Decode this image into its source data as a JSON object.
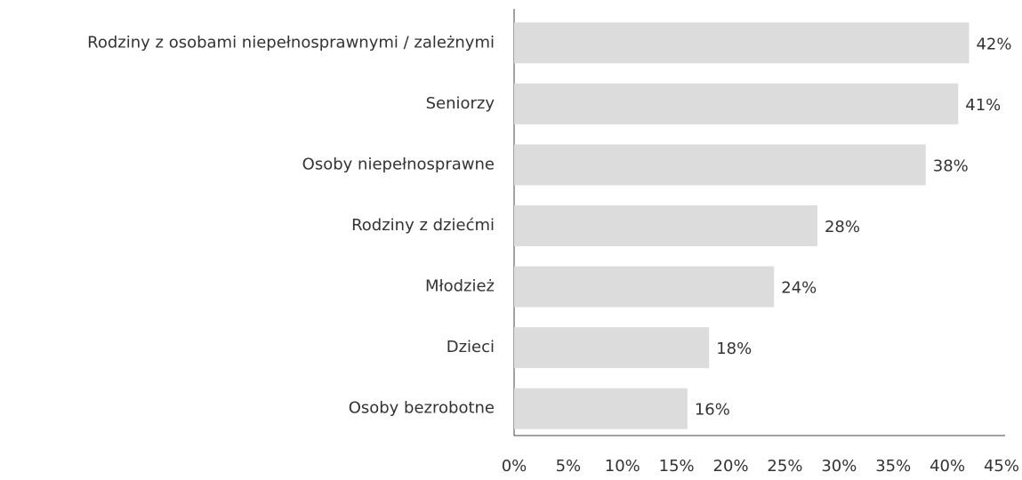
{
  "chart_data": {
    "type": "hbar",
    "categories": [
      "Rodziny z osobami niepełnosprawnymi / zależnymi",
      "Seniorzy",
      "Osoby niepełnosprawne",
      "Rodziny z dziećmi",
      "Młodzież",
      "Dzieci",
      "Osoby bezrobotne"
    ],
    "values": [
      42,
      41,
      38,
      28,
      24,
      18,
      16
    ],
    "value_labels": [
      "42%",
      "41%",
      "38%",
      "28%",
      "24%",
      "18%",
      "16%"
    ],
    "color": "#dcdcdc",
    "xlim": [
      0,
      45
    ],
    "xticks": [
      {
        "value": 0,
        "label": "0%"
      },
      {
        "value": 5,
        "label": "5%"
      },
      {
        "value": 10,
        "label": "10%"
      },
      {
        "value": 15,
        "label": "15%"
      },
      {
        "value": 20,
        "label": "20%"
      },
      {
        "value": 25,
        "label": "25%"
      },
      {
        "value": 30,
        "label": "30%"
      },
      {
        "value": 35,
        "label": "35%"
      },
      {
        "value": 40,
        "label": "40%"
      },
      {
        "value": 45,
        "label": "45%"
      }
    ],
    "grid": false
  }
}
